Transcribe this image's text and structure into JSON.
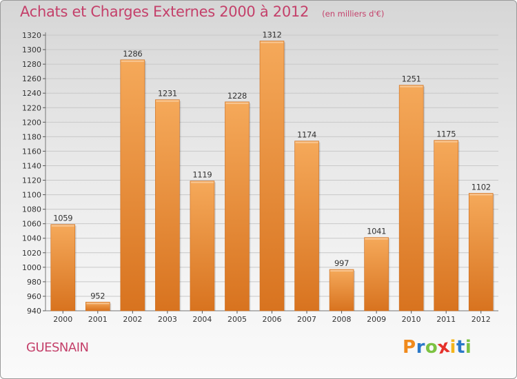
{
  "header": {
    "title": "Achats et Charges Externes 2000 à 2012",
    "unit": "(en milliers d'€)"
  },
  "footer": {
    "place": "GUESNAIN",
    "logo_text": "Proxiti",
    "logo_letters": [
      "P",
      "r",
      "o",
      "x",
      "i",
      "t",
      "i"
    ],
    "logo_colors": [
      "#f08a1c",
      "#2a78c8",
      "#7cc242",
      "#e5312b",
      "#f3b51c",
      "#2a78c8",
      "#7cc242"
    ]
  },
  "colors": {
    "title": "#c4406a",
    "bar_light": "#f5a95a",
    "bar_dark": "#d8731f",
    "grid": "#c8c8c8"
  },
  "chart_data": {
    "type": "bar",
    "title": "Achats et Charges Externes 2000 à 2012",
    "subtitle": "(en milliers d'€)",
    "categories": [
      "2000",
      "2001",
      "2002",
      "2003",
      "2004",
      "2005",
      "2006",
      "2007",
      "2008",
      "2009",
      "2010",
      "2011",
      "2012"
    ],
    "values": [
      1059,
      952,
      1286,
      1231,
      1119,
      1228,
      1312,
      1174,
      997,
      1041,
      1251,
      1175,
      1102
    ],
    "data_labels": [
      "1059",
      "952",
      "1286",
      "1231",
      "1119",
      "1228",
      "1312",
      "1174",
      "997",
      "1041",
      "1251",
      "1175",
      "1102"
    ],
    "yticks": [
      940,
      960,
      980,
      1000,
      1020,
      1040,
      1060,
      1080,
      1100,
      1120,
      1140,
      1160,
      1180,
      1200,
      1220,
      1240,
      1260,
      1280,
      1300,
      1320
    ],
    "ylim": [
      940,
      1320
    ],
    "xlabel": "",
    "ylabel": "",
    "grid": true,
    "legend": "none"
  }
}
